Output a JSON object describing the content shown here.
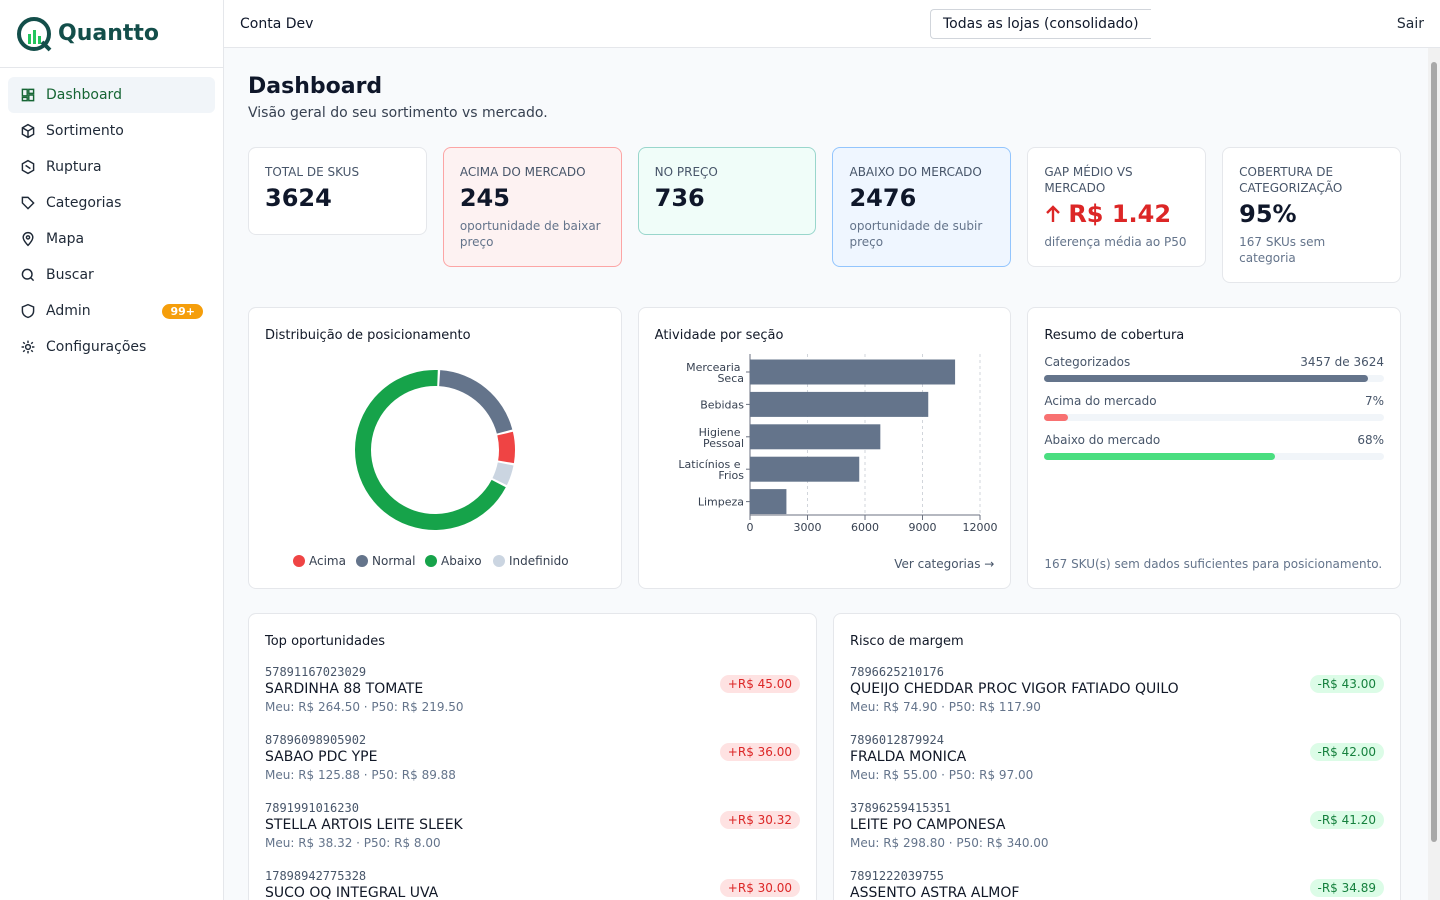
{
  "brand": "Quantto",
  "nav": [
    {
      "label": "Dashboard"
    },
    {
      "label": "Sortimento"
    },
    {
      "label": "Ruptura"
    },
    {
      "label": "Categorias"
    },
    {
      "label": "Mapa"
    },
    {
      "label": "Buscar"
    },
    {
      "label": "Admin",
      "badge": "99+"
    },
    {
      "label": "Configurações"
    }
  ],
  "header": {
    "account": "Conta Dev",
    "store": "Todas as lojas (consolidado)",
    "logout": "Sair"
  },
  "page": {
    "title": "Dashboard",
    "subtitle": "Visão geral do seu sortimento vs mercado."
  },
  "kpis": [
    {
      "label": "TOTAL DE SKUS",
      "value": 3624
    },
    {
      "label": "ACIMA DO MERCADO",
      "value": 245,
      "note": "oportunidade de baixar preço"
    },
    {
      "label": "NO PREÇO",
      "value": 736
    },
    {
      "label": "ABAIXO DO MERCADO",
      "value": 2476,
      "note": "oportunidade de subir preço"
    },
    {
      "label": "GAP MÉDIO VS MERCADO",
      "value": "R$ 1.42",
      "note": "diferença média ao P50"
    },
    {
      "label": "COBERTURA DE CATEGORIZAÇÃO",
      "value": "95%",
      "note": "167 SKUs sem categoria"
    }
  ],
  "chart_data": [
    {
      "type": "donut",
      "title": "Distribuição de posicionamento",
      "categories": [
        "Acima",
        "Normal",
        "Abaixo",
        "Indefinido"
      ],
      "values": [
        245,
        736,
        2476,
        167
      ],
      "colors": [
        "#ef4444",
        "#64748b",
        "#16a34a",
        "#cbd5e1"
      ]
    },
    {
      "type": "bar",
      "orientation": "horizontal",
      "title": "Atividade por seção",
      "categories": [
        "Mercearia Seca",
        "Bebidas",
        "Higiene Pessoal",
        "Laticínios e Frios",
        "Limpeza"
      ],
      "values": [
        10700,
        9300,
        6800,
        5700,
        1900
      ],
      "color": "#64748b",
      "xlim": [
        0,
        12000
      ],
      "xticks": [
        0,
        3000,
        6000,
        9000,
        12000
      ],
      "grid": true,
      "link": "Ver categorias →"
    }
  ],
  "coverage": {
    "title": "Resumo de cobertura",
    "rows": [
      {
        "label": "Categorizados",
        "value": 3457,
        "total": 3624,
        "value_label": "3457 de 3624",
        "color": "#64748b"
      },
      {
        "label": "Acima do mercado",
        "value": 7,
        "value_label": "7%",
        "color": "#f87171"
      },
      {
        "label": "Abaixo do mercado",
        "value": 68,
        "value_label": "68%",
        "color": "#4ade80"
      }
    ],
    "note": "167 SKU(s) sem dados suficientes para posicionamento."
  },
  "lists": [
    {
      "title": "Top oportunidades",
      "items": [
        {
          "code": "57891167023029",
          "name": "SARDINHA 88 TOMATE",
          "meta": "Meu: R$ 264.50 · P50: R$ 219.50",
          "delta": "+R$ 45.00"
        },
        {
          "code": "87896098905902",
          "name": "SABAO PDC YPE",
          "meta": "Meu: R$ 125.88 · P50: R$ 89.88",
          "delta": "+R$ 36.00"
        },
        {
          "code": "7891991016230",
          "name": "STELLA ARTOIS LEITE SLEEK",
          "meta": "Meu: R$ 38.32 · P50: R$ 8.00",
          "delta": "+R$ 30.32"
        },
        {
          "code": "17898942775328",
          "name": "SUCO OQ INTEGRAL UVA",
          "delta": "+R$ 30.00"
        }
      ]
    },
    {
      "title": "Risco de margem",
      "items": [
        {
          "code": "7896625210176",
          "name": "QUEIJO CHEDDAR PROC VIGOR FATIADO QUILO",
          "meta": "Meu: R$ 74.90 · P50: R$ 117.90",
          "delta": "-R$ 43.00"
        },
        {
          "code": "7896012879924",
          "name": "FRALDA MONICA",
          "meta": "Meu: R$ 55.00 · P50: R$ 97.00",
          "delta": "-R$ 42.00"
        },
        {
          "code": "37896259415351",
          "name": "LEITE PO CAMPONESA",
          "meta": "Meu: R$ 298.80 · P50: R$ 340.00",
          "delta": "-R$ 41.20"
        },
        {
          "code": "7891222039755",
          "name": "ASSENTO ASTRA ALMOF",
          "delta": "-R$ 34.89"
        }
      ]
    }
  ]
}
